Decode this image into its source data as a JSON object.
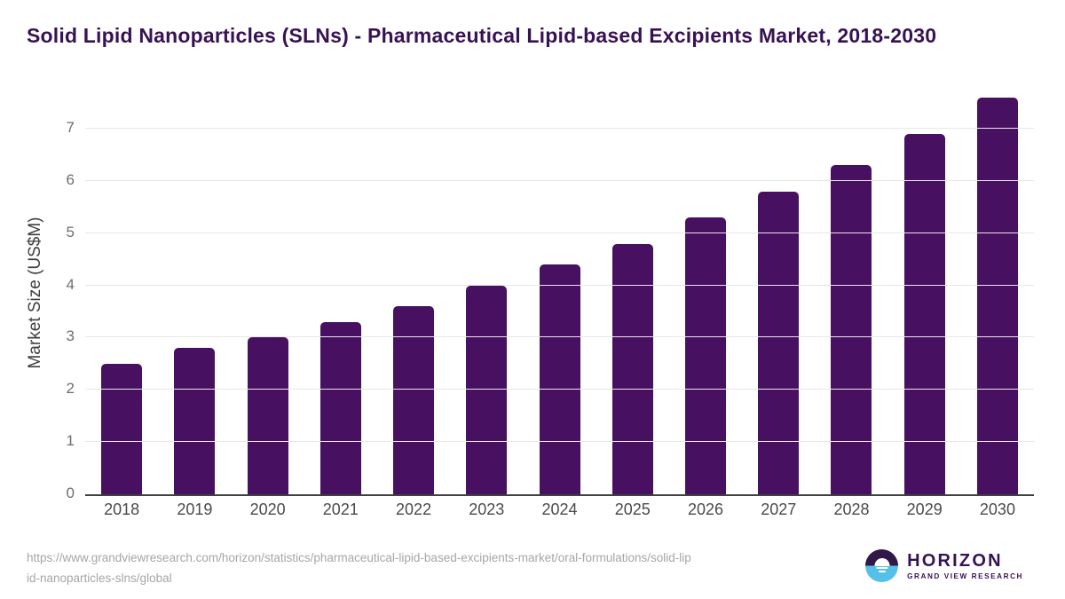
{
  "title": "Solid Lipid Nanoparticles (SLNs) - Pharmaceutical Lipid-based Excipients Market, 2018-2030",
  "chart_data": {
    "type": "bar",
    "categories": [
      "2018",
      "2019",
      "2020",
      "2021",
      "2022",
      "2023",
      "2024",
      "2025",
      "2026",
      "2027",
      "2028",
      "2029",
      "2030"
    ],
    "values": [
      2.5,
      2.8,
      3.0,
      3.3,
      3.6,
      4.0,
      4.4,
      4.8,
      5.3,
      5.8,
      6.3,
      6.9,
      7.6
    ],
    "title": "Solid Lipid Nanoparticles (SLNs) - Pharmaceutical Lipid-based Excipients Market, 2018-2030",
    "xlabel": "",
    "ylabel": "Market Size (US$M)",
    "ylim": [
      0,
      7.8
    ],
    "yticks": [
      0,
      1,
      2,
      3,
      4,
      5,
      6,
      7
    ],
    "grid": true,
    "legend": "none",
    "bar_color": "#471060"
  },
  "footer": {
    "source_lines": [
      "https://www.grandviewresearch.com/horizon/statistics/pharmaceutical-lipid-based-excipients-market/oral-formulations/solid-lip",
      "id-nanoparticles-slns/global"
    ],
    "logo": {
      "name": "HORIZON",
      "subtitle": "GRAND VIEW RESEARCH"
    }
  },
  "colors": {
    "bar": "#471060",
    "title_text": "#381253",
    "axis_line": "#404040",
    "gridline": "#e7e7e7",
    "ytick_label": "#6e6e6e",
    "xtick_label": "#4a4a4a",
    "source_text": "#a6a6a6",
    "logo_blue": "#56c1e8",
    "logo_dark_purple": "#321847"
  }
}
